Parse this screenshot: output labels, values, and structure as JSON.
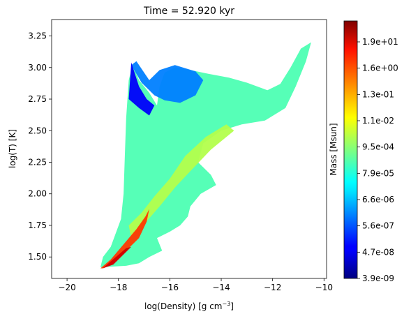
{
  "chart_data": {
    "type": "heatmap",
    "title": "Time = 52.920 kyr",
    "xlabel": "log(Density) [g cm",
    "xlabel_sup": "−3",
    "xlabel_end": "]",
    "ylabel": "log(T) [K]",
    "xlim": [
      -20.6,
      -9.9
    ],
    "ylim": [
      1.33,
      3.38
    ],
    "x_ticks": [
      {
        "value": -20,
        "label": "−20"
      },
      {
        "value": -18,
        "label": "−18"
      },
      {
        "value": -16,
        "label": "−16"
      },
      {
        "value": -14,
        "label": "−14"
      },
      {
        "value": -12,
        "label": "−12"
      },
      {
        "value": -10,
        "label": "−10"
      }
    ],
    "y_ticks": [
      {
        "value": 1.5,
        "label": "1.50"
      },
      {
        "value": 1.75,
        "label": "1.75"
      },
      {
        "value": 2.0,
        "label": "2.00"
      },
      {
        "value": 2.25,
        "label": "2.25"
      },
      {
        "value": 2.5,
        "label": "2.50"
      },
      {
        "value": 2.75,
        "label": "2.75"
      },
      {
        "value": 3.0,
        "label": "3.00"
      },
      {
        "value": 3.25,
        "label": "3.25"
      }
    ],
    "colorbar": {
      "label": "Mass [Msun]",
      "colormap": "jet",
      "scale": "log",
      "ticks": [
        "3.9e-09",
        "4.7e-08",
        "5.6e-07",
        "6.6e-06",
        "7.9e-05",
        "9.5e-04",
        "1.1e-02",
        "1.3e-01",
        "1.6e+00",
        "1.9e+01"
      ]
    },
    "regions": [
      {
        "name": "main",
        "level": 0.45,
        "points": [
          [
            -18.6,
            1.42
          ],
          [
            -17.7,
            1.43
          ],
          [
            -17.2,
            1.45
          ],
          [
            -16.8,
            1.5
          ],
          [
            -16.3,
            1.55
          ],
          [
            -16.5,
            1.65
          ],
          [
            -16.0,
            1.7
          ],
          [
            -15.6,
            1.75
          ],
          [
            -15.3,
            1.82
          ],
          [
            -15.2,
            1.9
          ],
          [
            -14.8,
            2.0
          ],
          [
            -14.2,
            2.07
          ],
          [
            -14.4,
            2.15
          ],
          [
            -14.9,
            2.25
          ],
          [
            -14.7,
            2.4
          ],
          [
            -14.0,
            2.5
          ],
          [
            -13.2,
            2.55
          ],
          [
            -12.3,
            2.58
          ],
          [
            -11.5,
            2.68
          ],
          [
            -11.1,
            2.85
          ],
          [
            -10.7,
            3.05
          ],
          [
            -10.5,
            3.2
          ],
          [
            -10.9,
            3.15
          ],
          [
            -11.3,
            3.0
          ],
          [
            -11.7,
            2.87
          ],
          [
            -12.2,
            2.82
          ],
          [
            -13.0,
            2.88
          ],
          [
            -13.7,
            2.92
          ],
          [
            -14.5,
            2.95
          ],
          [
            -15.2,
            2.98
          ],
          [
            -15.8,
            3.0
          ],
          [
            -16.2,
            2.96
          ],
          [
            -16.4,
            2.85
          ],
          [
            -16.5,
            2.7
          ],
          [
            -16.8,
            2.8
          ],
          [
            -17.2,
            2.9
          ],
          [
            -17.45,
            3.02
          ],
          [
            -17.6,
            2.9
          ],
          [
            -17.7,
            2.6
          ],
          [
            -17.75,
            2.3
          ],
          [
            -17.8,
            2.0
          ],
          [
            -17.9,
            1.8
          ],
          [
            -18.3,
            1.58
          ],
          [
            -18.6,
            1.5
          ],
          [
            -18.7,
            1.42
          ]
        ]
      },
      {
        "name": "cold-branch",
        "level": 0.25,
        "points": [
          [
            -17.5,
            3.02
          ],
          [
            -17.1,
            2.88
          ],
          [
            -16.6,
            2.78
          ],
          [
            -16.2,
            2.74
          ],
          [
            -15.6,
            2.72
          ],
          [
            -15.0,
            2.78
          ],
          [
            -14.7,
            2.9
          ],
          [
            -15.0,
            2.97
          ],
          [
            -15.8,
            3.02
          ],
          [
            -16.4,
            2.98
          ],
          [
            -16.8,
            2.9
          ],
          [
            -17.3,
            3.05
          ]
        ]
      },
      {
        "name": "top-cold",
        "level": 0.12,
        "points": [
          [
            -17.5,
            3.04
          ],
          [
            -17.2,
            2.85
          ],
          [
            -16.9,
            2.75
          ],
          [
            -16.6,
            2.7
          ],
          [
            -16.8,
            2.62
          ],
          [
            -17.2,
            2.68
          ],
          [
            -17.6,
            2.75
          ]
        ]
      },
      {
        "name": "mid-band",
        "level": 0.55,
        "points": [
          [
            -17.6,
            1.75
          ],
          [
            -17.1,
            1.85
          ],
          [
            -16.6,
            1.98
          ],
          [
            -16.0,
            2.12
          ],
          [
            -15.4,
            2.3
          ],
          [
            -14.6,
            2.45
          ],
          [
            -13.8,
            2.55
          ],
          [
            -13.5,
            2.5
          ],
          [
            -14.4,
            2.35
          ],
          [
            -15.2,
            2.18
          ],
          [
            -15.8,
            2.05
          ],
          [
            -16.4,
            1.9
          ],
          [
            -17.0,
            1.76
          ],
          [
            -17.5,
            1.65
          ]
        ]
      },
      {
        "name": "dense-ridge",
        "level": 0.82,
        "points": [
          [
            -18.6,
            1.41
          ],
          [
            -18.2,
            1.45
          ],
          [
            -17.7,
            1.55
          ],
          [
            -17.2,
            1.65
          ],
          [
            -16.9,
            1.78
          ],
          [
            -16.8,
            1.88
          ],
          [
            -16.95,
            1.82
          ],
          [
            -17.3,
            1.72
          ],
          [
            -17.8,
            1.6
          ],
          [
            -18.3,
            1.48
          ],
          [
            -18.7,
            1.41
          ]
        ]
      },
      {
        "name": "core",
        "level": 0.92,
        "points": [
          [
            -18.6,
            1.41
          ],
          [
            -18.2,
            1.44
          ],
          [
            -17.8,
            1.52
          ],
          [
            -17.5,
            1.58
          ],
          [
            -17.7,
            1.57
          ],
          [
            -18.1,
            1.5
          ],
          [
            -18.5,
            1.43
          ]
        ]
      }
    ]
  }
}
